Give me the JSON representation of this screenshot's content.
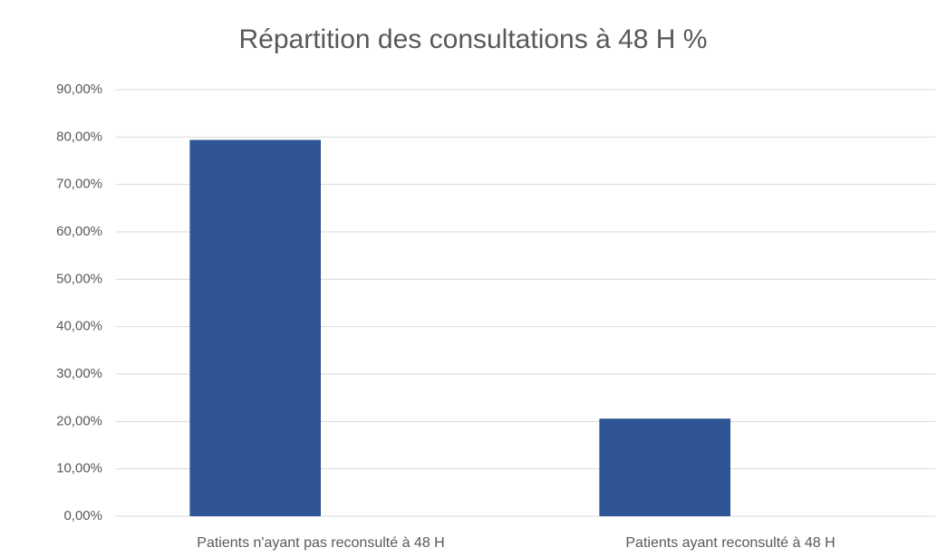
{
  "chart_data": {
    "type": "bar",
    "title": "Répartition des consultations à 48 H %",
    "categories": [
      "Patients n'ayant pas reconsulté à 48 H",
      "Patients ayant reconsulté à 48 H"
    ],
    "values": [
      79.4,
      20.6
    ],
    "color": "#2f5597",
    "ylim": [
      0,
      90
    ],
    "yticks": [
      {
        "value": 0,
        "label": "0,00%"
      },
      {
        "value": 10,
        "label": "10,00%"
      },
      {
        "value": 20,
        "label": "20,00%"
      },
      {
        "value": 30,
        "label": "30,00%"
      },
      {
        "value": 40,
        "label": "40,00%"
      },
      {
        "value": 50,
        "label": "50,00%"
      },
      {
        "value": 60,
        "label": "60,00%"
      },
      {
        "value": 70,
        "label": "70,00%"
      },
      {
        "value": 80,
        "label": "80,00%"
      },
      {
        "value": 90,
        "label": "90,00%"
      }
    ],
    "grid": true
  }
}
